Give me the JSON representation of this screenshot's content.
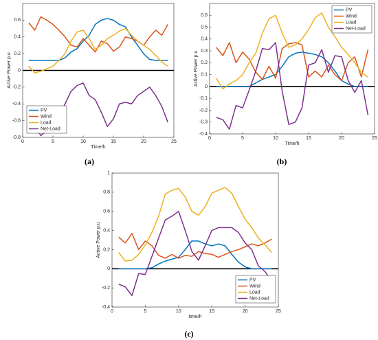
{
  "chart_data": [
    {
      "type": "line",
      "caption": "(a)",
      "xlabel": "Time/h",
      "ylabel": "Active Power p.u",
      "x": [
        1,
        2,
        3,
        4,
        5,
        6,
        7,
        8,
        9,
        10,
        11,
        12,
        13,
        14,
        15,
        16,
        17,
        18,
        19,
        20,
        21,
        22,
        23,
        24
      ],
      "xlim": [
        0,
        25
      ],
      "xticks": [
        0,
        5,
        10,
        15,
        20,
        25
      ],
      "ylim": [
        -0.8,
        0.8
      ],
      "yticks": [
        -0.8,
        -0.6,
        -0.4,
        -0.2,
        0,
        0.2,
        0.4,
        0.6
      ],
      "zero_line": true,
      "legend": "lower left",
      "series": [
        {
          "name": "PV",
          "color": "#0072bd",
          "values": [
            0.12,
            0.12,
            0.12,
            0.12,
            0.12,
            0.12,
            0.15,
            0.22,
            0.26,
            0.35,
            0.42,
            0.55,
            0.6,
            0.62,
            0.6,
            0.55,
            0.52,
            0.4,
            0.3,
            0.2,
            0.13,
            0.12,
            0.12,
            0.12
          ]
        },
        {
          "name": "Wind",
          "color": "#d95319",
          "values": [
            0.57,
            0.48,
            0.64,
            0.6,
            0.55,
            0.48,
            0.4,
            0.3,
            0.28,
            0.38,
            0.3,
            0.22,
            0.35,
            0.32,
            0.23,
            0.28,
            0.4,
            0.38,
            0.35,
            0.3,
            0.4,
            0.48,
            0.42,
            0.55
          ]
        },
        {
          "name": "Load",
          "color": "#edb120",
          "values": [
            0.05,
            -0.03,
            -0.01,
            0.02,
            0.05,
            0.12,
            0.2,
            0.35,
            0.46,
            0.48,
            0.38,
            0.25,
            0.3,
            0.38,
            0.42,
            0.47,
            0.5,
            0.42,
            0.35,
            0.3,
            0.25,
            0.18,
            0.1,
            0.05
          ]
        },
        {
          "name": "Net-Load",
          "color": "#7e2f8e",
          "values": [
            -0.67,
            -0.65,
            -0.78,
            -0.72,
            -0.65,
            -0.55,
            -0.4,
            -0.25,
            -0.18,
            -0.15,
            -0.3,
            -0.35,
            -0.5,
            -0.67,
            -0.58,
            -0.4,
            -0.38,
            -0.4,
            -0.3,
            -0.25,
            -0.2,
            -0.3,
            -0.43,
            -0.62
          ]
        }
      ]
    },
    {
      "type": "line",
      "caption": "(b)",
      "xlabel": "Time/h",
      "ylabel": "Active Power p.u",
      "x": [
        1,
        2,
        3,
        4,
        5,
        6,
        7,
        8,
        9,
        10,
        11,
        12,
        13,
        14,
        15,
        16,
        17,
        18,
        19,
        20,
        21,
        22,
        23,
        24
      ],
      "xlim": [
        0,
        25
      ],
      "xticks": [
        0,
        5,
        10,
        15,
        20,
        25
      ],
      "ylim": [
        -0.4,
        0.7
      ],
      "yticks": [
        -0.4,
        -0.3,
        -0.2,
        -0.1,
        0,
        0.1,
        0.2,
        0.3,
        0.4,
        0.5,
        0.6
      ],
      "zero_line": true,
      "legend": "upper right",
      "series": [
        {
          "name": "PV",
          "color": "#0072bd",
          "values": [
            0,
            0,
            0,
            0,
            0,
            0,
            0.03,
            0.06,
            0.08,
            0.1,
            0.17,
            0.25,
            0.28,
            0.29,
            0.28,
            0.27,
            0.25,
            0.2,
            0.13,
            0.05,
            0.02,
            0,
            0,
            0
          ]
        },
        {
          "name": "Wind",
          "color": "#d95319",
          "values": [
            0.33,
            0.26,
            0.37,
            0.2,
            0.29,
            0.23,
            0.12,
            0.06,
            0.17,
            0.07,
            0.32,
            0.36,
            0.37,
            0.35,
            0.08,
            0.13,
            0.08,
            0.18,
            0.1,
            0.05,
            0.2,
            0.25,
            0.08,
            0.31
          ]
        },
        {
          "name": "Load",
          "color": "#edb120",
          "values": [
            0.07,
            -0.02,
            0.02,
            0.05,
            0.1,
            0.2,
            0.28,
            0.45,
            0.57,
            0.6,
            0.45,
            0.33,
            0.35,
            0.4,
            0.48,
            0.58,
            0.62,
            0.5,
            0.42,
            0.33,
            0.27,
            0.2,
            0.12,
            0.08
          ]
        },
        {
          "name": "Net-Load",
          "color": "#7e2f8e",
          "values": [
            -0.26,
            -0.28,
            -0.36,
            -0.16,
            -0.18,
            -0.03,
            0.13,
            0.32,
            0.31,
            0.37,
            -0.04,
            -0.32,
            -0.3,
            -0.18,
            0.18,
            0.2,
            0.31,
            0.12,
            0.26,
            0.25,
            0.05,
            -0.05,
            0.05,
            -0.24
          ]
        }
      ]
    },
    {
      "type": "line",
      "caption": "(c)",
      "xlabel": "time/h",
      "ylabel": "Active Power p.u",
      "x": [
        1,
        2,
        3,
        4,
        5,
        6,
        7,
        8,
        9,
        10,
        11,
        12,
        13,
        14,
        15,
        16,
        17,
        18,
        19,
        20,
        21,
        22,
        23,
        24
      ],
      "xlim": [
        0,
        25
      ],
      "xticks": [
        0,
        5,
        10,
        15,
        20,
        25
      ],
      "ylim": [
        -0.4,
        1
      ],
      "yticks": [
        -0.4,
        -0.2,
        0,
        0.2,
        0.4,
        0.6,
        0.8,
        1
      ],
      "zero_line": true,
      "legend": "lower right",
      "series": [
        {
          "name": "PV",
          "color": "#0072bd",
          "values": [
            0,
            0,
            0,
            0,
            0,
            0.01,
            0.05,
            0.08,
            0.1,
            0.12,
            0.2,
            0.29,
            0.29,
            0.26,
            0.24,
            0.26,
            0.24,
            0.15,
            0.07,
            0.02,
            0,
            0,
            0,
            0
          ]
        },
        {
          "name": "Wind",
          "color": "#d95319",
          "values": [
            0.33,
            0.27,
            0.37,
            0.2,
            0.29,
            0.24,
            0.14,
            0.11,
            0.15,
            0.11,
            0.14,
            0.13,
            0.18,
            0.16,
            0.15,
            0.12,
            0.15,
            0.18,
            0.2,
            0.23,
            0.26,
            0.24,
            0.27,
            0.31
          ]
        },
        {
          "name": "Load",
          "color": "#edb120",
          "values": [
            0.17,
            0.08,
            0.09,
            0.15,
            0.25,
            0.38,
            0.55,
            0.78,
            0.82,
            0.84,
            0.75,
            0.6,
            0.56,
            0.65,
            0.79,
            0.82,
            0.85,
            0.79,
            0.65,
            0.52,
            0.43,
            0.32,
            0.25,
            0.17
          ]
        },
        {
          "name": "Net-Load",
          "color": "#7e2f8e",
          "values": [
            -0.16,
            -0.19,
            -0.28,
            -0.05,
            -0.06,
            0.13,
            0.32,
            0.51,
            0.55,
            0.6,
            0.4,
            0.18,
            0.09,
            0.24,
            0.4,
            0.43,
            0.43,
            0.43,
            0.38,
            0.27,
            0.2,
            0.03,
            -0.03,
            -0.13
          ]
        }
      ]
    }
  ]
}
